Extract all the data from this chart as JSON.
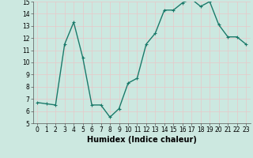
{
  "x": [
    0,
    1,
    2,
    3,
    4,
    5,
    6,
    7,
    8,
    9,
    10,
    11,
    12,
    13,
    14,
    15,
    16,
    17,
    18,
    19,
    20,
    21,
    22,
    23
  ],
  "y": [
    6.7,
    6.6,
    6.5,
    11.5,
    13.3,
    10.4,
    6.5,
    6.5,
    5.5,
    6.2,
    8.3,
    8.7,
    11.5,
    12.4,
    14.3,
    14.3,
    14.9,
    15.2,
    14.6,
    15.0,
    13.1,
    12.1,
    12.1,
    11.5
  ],
  "line_color": "#1a7a6a",
  "marker": "+",
  "marker_size": 3.5,
  "background_color": "#cce8e0",
  "grid_color": "#e8c8c8",
  "xlabel": "Humidex (Indice chaleur)",
  "ylim": [
    5,
    15
  ],
  "xlim": [
    -0.5,
    23.5
  ],
  "yticks": [
    5,
    6,
    7,
    8,
    9,
    10,
    11,
    12,
    13,
    14,
    15
  ],
  "xticks": [
    0,
    1,
    2,
    3,
    4,
    5,
    6,
    7,
    8,
    9,
    10,
    11,
    12,
    13,
    14,
    15,
    16,
    17,
    18,
    19,
    20,
    21,
    22,
    23
  ],
  "tick_fontsize": 5.5,
  "xlabel_fontsize": 7,
  "line_width": 1.0
}
